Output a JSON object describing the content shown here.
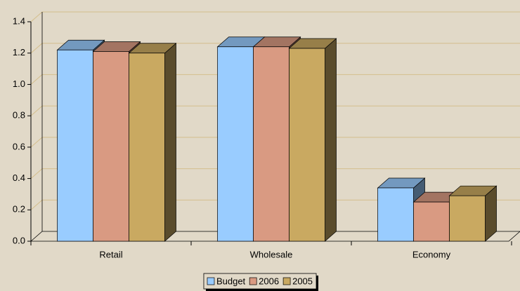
{
  "chart_data": {
    "type": "bar3d",
    "categories": [
      "Retail",
      "Wholesale",
      "Economy"
    ],
    "series": [
      {
        "name": "Budget",
        "color": "#99ccff",
        "values": [
          1.22,
          1.24,
          0.34
        ]
      },
      {
        "name": "2006",
        "color": "#d99a82",
        "values": [
          1.21,
          1.24,
          0.25
        ]
      },
      {
        "name": "2005",
        "color": "#c9a961",
        "values": [
          1.2,
          1.23,
          0.29
        ]
      }
    ],
    "ylim": [
      0,
      1.4
    ],
    "yticks": [
      {
        "value": 0,
        "label": "0.0"
      },
      0.2,
      0.4,
      0.6,
      0.8,
      {
        "value": 1,
        "label": "1.0"
      },
      1.2,
      1.4
    ],
    "grid": true,
    "legend": "bottom"
  }
}
